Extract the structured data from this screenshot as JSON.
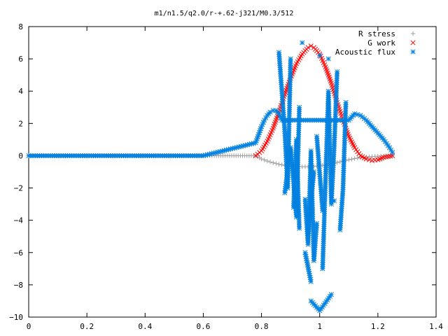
{
  "chart_data": {
    "type": "scatter",
    "title": "m1/n1.5/q2.0/r-+.62-j321/M0.3/512",
    "xlabel": "",
    "ylabel": "",
    "xlim": [
      0,
      1.4
    ],
    "ylim": [
      -10,
      8
    ],
    "x_ticks": [
      "0",
      "0.2",
      "0.4",
      "0.6",
      "0.8",
      "1",
      "1.2",
      "1.4"
    ],
    "y_ticks": [
      "8",
      "6",
      "4",
      "2",
      "0",
      "−2",
      "−4",
      "−6",
      "−8",
      "−10"
    ],
    "grid": false,
    "legend_position": "top-right",
    "series": [
      {
        "name": "R stress",
        "marker": "plus",
        "color": "#a0a0a0",
        "x": [
          0.0,
          0.2,
          0.4,
          0.6,
          0.78,
          0.8,
          0.82,
          0.84,
          0.86,
          0.88,
          0.9,
          0.92,
          0.94,
          0.96,
          0.98,
          1.0,
          1.02,
          1.04,
          1.06,
          1.08,
          1.1,
          1.12,
          1.14,
          1.16,
          1.18,
          1.2,
          1.22,
          1.25
        ],
        "y": [
          0.0,
          0.0,
          0.0,
          0.0,
          0.0,
          -0.2,
          -0.33,
          -0.44,
          -0.53,
          -0.6,
          -0.65,
          -0.67,
          -0.68,
          -0.68,
          -0.66,
          -0.62,
          -0.57,
          -0.5,
          -0.42,
          -0.33,
          -0.25,
          -0.18,
          -0.12,
          -0.08,
          -0.05,
          -0.03,
          -0.01,
          0.0
        ]
      },
      {
        "name": "G work",
        "marker": "cross",
        "color": "#ff0000",
        "x": [
          0.78,
          0.8,
          0.82,
          0.84,
          0.86,
          0.88,
          0.9,
          0.92,
          0.94,
          0.96,
          0.97,
          0.98,
          1.0,
          1.02,
          1.04,
          1.06,
          1.08,
          1.1,
          1.12,
          1.14,
          1.16,
          1.18,
          1.2,
          1.22,
          1.25
        ],
        "y": [
          0.0,
          0.3,
          0.9,
          1.7,
          2.7,
          3.8,
          4.8,
          5.7,
          6.3,
          6.7,
          6.8,
          6.7,
          6.3,
          5.5,
          4.5,
          3.3,
          2.2,
          1.2,
          0.5,
          0.0,
          -0.2,
          -0.3,
          -0.25,
          -0.1,
          0.0
        ]
      },
      {
        "name": "Acoustic flux",
        "marker": "star",
        "color": "#0080e0",
        "x": [
          0.0,
          0.2,
          0.4,
          0.6,
          0.78,
          0.79,
          0.8,
          0.81,
          0.82,
          0.83,
          0.84,
          0.85,
          0.86,
          0.87,
          1.1,
          1.12,
          1.14,
          1.16,
          1.18,
          1.2,
          1.22,
          1.24,
          1.25,
          0.86,
          0.87,
          0.88,
          0.89,
          0.9,
          0.91,
          0.92,
          0.93,
          0.94,
          0.95,
          0.96,
          0.97,
          0.98,
          0.99,
          1.0,
          1.01,
          1.02,
          1.03,
          1.04,
          1.05,
          1.06,
          1.07,
          1.08,
          1.09,
          0.88,
          0.9,
          0.92,
          0.93,
          0.95,
          0.97,
          0.99,
          1.01,
          1.03,
          1.05,
          0.97,
          1.0,
          1.04,
          0.96,
          0.98
        ],
        "y": [
          0.0,
          0.0,
          0.0,
          0.0,
          0.8,
          1.3,
          1.8,
          2.2,
          2.5,
          2.7,
          2.8,
          2.8,
          2.6,
          2.2,
          2.2,
          2.6,
          2.5,
          2.2,
          1.8,
          1.4,
          1.0,
          0.5,
          0.2,
          6.4,
          4.0,
          1.5,
          -2.0,
          6.0,
          -3.2,
          1.0,
          -4.5,
          7.0,
          -2.7,
          -5.5,
          0.3,
          -6.5,
          -4.2,
          6.2,
          -7.0,
          -1.5,
          4.0,
          -3.0,
          0.6,
          5.2,
          -4.6,
          -2.1,
          3.3,
          -2.3,
          0.5,
          -3.8,
          3.0,
          -6.0,
          -7.8,
          1.2,
          -3.4,
          6.0,
          -2.8,
          -9.0,
          -9.6,
          -8.6,
          -4.8,
          -1.0
        ]
      }
    ]
  }
}
